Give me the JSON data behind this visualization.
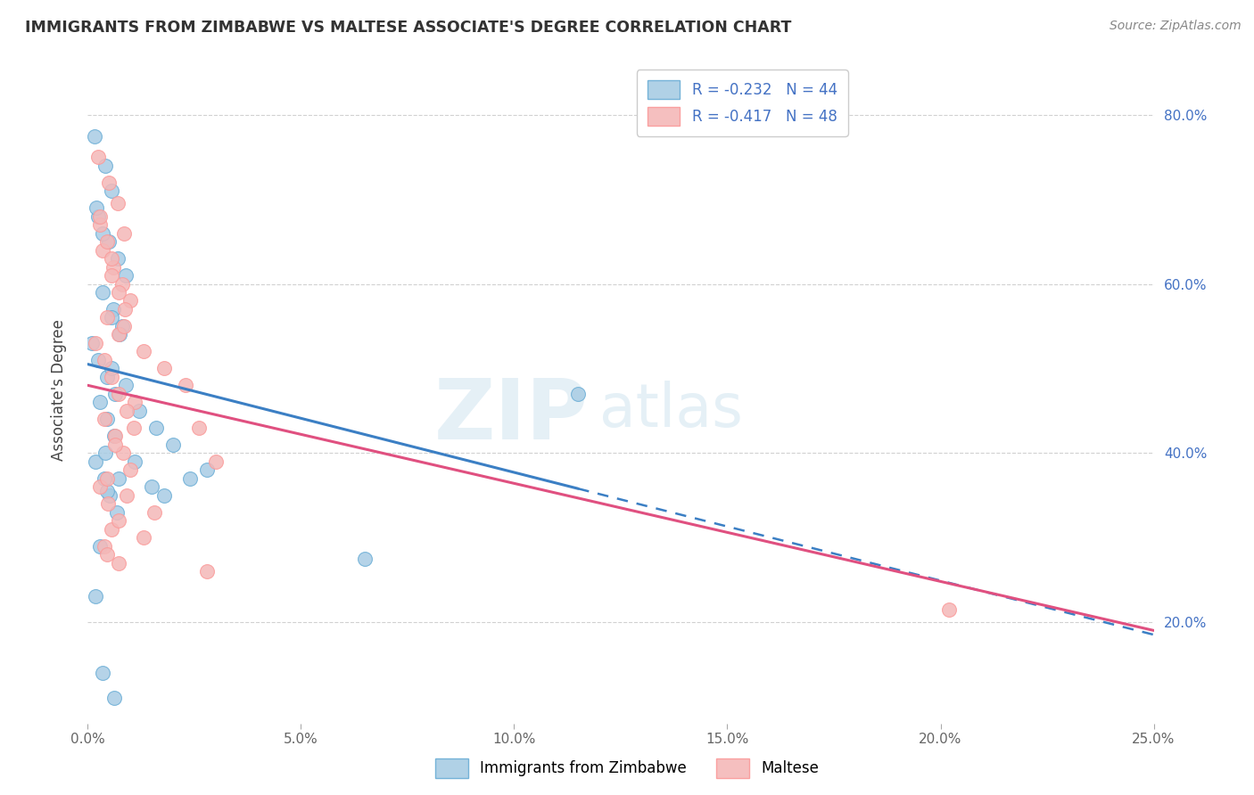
{
  "title": "IMMIGRANTS FROM ZIMBABWE VS MALTESE ASSOCIATE'S DEGREE CORRELATION CHART",
  "source": "Source: ZipAtlas.com",
  "ylabel": "Associate's Degree",
  "xlim": [
    0.0,
    25.0
  ],
  "ylim": [
    8.0,
    87.0
  ],
  "yticks": [
    20.0,
    40.0,
    60.0,
    80.0
  ],
  "xticks": [
    0.0,
    5.0,
    10.0,
    15.0,
    20.0,
    25.0
  ],
  "legend_labels": [
    "Immigrants from Zimbabwe",
    "Maltese"
  ],
  "legend_r1": "-0.232",
  "legend_n1": "44",
  "legend_r2": "-0.417",
  "legend_n2": "48",
  "blue_color": "#a8cce4",
  "pink_color": "#f4b8b8",
  "blue_edge_color": "#6baed6",
  "pink_edge_color": "#fb9a99",
  "blue_line_color": "#3b7fc4",
  "pink_line_color": "#e05080",
  "blue_line_solid_end": 11.5,
  "blue_line_xstart": 0.0,
  "blue_line_xend": 25.0,
  "pink_line_xstart": 0.0,
  "pink_line_xend": 25.0,
  "blue_line_ystart": 50.5,
  "blue_line_yend": 18.5,
  "pink_line_ystart": 48.0,
  "pink_line_yend": 19.0,
  "watermark_zip": "ZIP",
  "watermark_atlas": "atlas",
  "blue_scatter_x": [
    0.15,
    0.4,
    0.55,
    0.25,
    0.5,
    0.7,
    0.9,
    0.35,
    0.6,
    0.8,
    0.1,
    0.25,
    0.45,
    0.65,
    1.2,
    1.6,
    2.0,
    0.2,
    0.35,
    0.55,
    0.75,
    0.9,
    0.28,
    0.45,
    0.62,
    0.18,
    0.38,
    0.52,
    0.68,
    1.1,
    2.4,
    1.5,
    0.45,
    0.28,
    11.5,
    0.18,
    0.42,
    0.72,
    1.8,
    6.5,
    0.55,
    2.8,
    0.35,
    0.62
  ],
  "blue_scatter_y": [
    77.5,
    74.0,
    71.0,
    68.0,
    65.0,
    63.0,
    61.0,
    59.0,
    57.0,
    55.0,
    53.0,
    51.0,
    49.0,
    47.0,
    45.0,
    43.0,
    41.0,
    69.0,
    66.0,
    56.0,
    54.0,
    48.0,
    46.0,
    44.0,
    42.0,
    39.0,
    37.0,
    35.0,
    33.0,
    39.0,
    37.0,
    36.0,
    35.5,
    29.0,
    47.0,
    23.0,
    40.0,
    37.0,
    35.0,
    27.5,
    50.0,
    38.0,
    14.0,
    11.0
  ],
  "pink_scatter_x": [
    0.25,
    0.5,
    0.7,
    0.85,
    0.35,
    0.6,
    0.8,
    1.0,
    0.45,
    0.72,
    1.3,
    1.8,
    0.28,
    0.45,
    0.55,
    0.72,
    0.88,
    1.1,
    0.38,
    0.65,
    0.82,
    1.0,
    0.18,
    0.38,
    0.55,
    0.72,
    0.92,
    1.08,
    0.28,
    0.48,
    2.3,
    2.6,
    3.0,
    1.55,
    0.55,
    0.38,
    0.72,
    0.92,
    0.45,
    0.65,
    0.28,
    0.55,
    0.85,
    20.2,
    0.72,
    1.3,
    0.45,
    2.8
  ],
  "pink_scatter_y": [
    75.0,
    72.0,
    69.5,
    66.0,
    64.0,
    62.0,
    60.0,
    58.0,
    56.0,
    54.0,
    52.0,
    50.0,
    67.0,
    65.0,
    61.0,
    59.0,
    57.0,
    46.0,
    44.0,
    42.0,
    40.0,
    38.0,
    53.0,
    51.0,
    49.0,
    47.0,
    45.0,
    43.0,
    36.0,
    34.0,
    48.0,
    43.0,
    39.0,
    33.0,
    31.0,
    29.0,
    27.0,
    35.0,
    37.0,
    41.0,
    68.0,
    63.0,
    55.0,
    21.5,
    32.0,
    30.0,
    28.0,
    26.0
  ]
}
